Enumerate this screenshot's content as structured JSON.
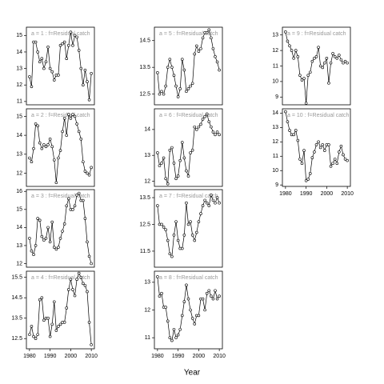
{
  "xlabel": "Year",
  "chart_data": [
    {
      "type": "line",
      "title": "a = 1 : f=Residual catch",
      "x": [
        1980,
        1981,
        1982,
        1983,
        1984,
        1985,
        1986,
        1987,
        1988,
        1989,
        1990,
        1991,
        1992,
        1993,
        1994,
        1995,
        1996,
        1997,
        1998,
        1999,
        2000,
        2001,
        2002,
        2003,
        2004,
        2005,
        2006,
        2007,
        2008,
        2009,
        2010
      ],
      "values": [
        12.5,
        11.9,
        14.6,
        14.6,
        14.0,
        13.4,
        13.6,
        13.0,
        13.4,
        14.3,
        13.0,
        12.8,
        12.3,
        12.6,
        12.6,
        14.4,
        14.5,
        14.6,
        13.6,
        14.4,
        15.2,
        14.4,
        15.0,
        14.9,
        14.1,
        13.0,
        12.0,
        12.9,
        12.2,
        11.1,
        12.7
      ],
      "xlim": [
        1978.5,
        2011.5
      ],
      "ylim": [
        10.8,
        15.5
      ],
      "yticks": [
        11,
        12,
        13,
        14,
        15
      ]
    },
    {
      "type": "line",
      "title": "a = 2 : f=Residual catch",
      "x": [
        1980,
        1981,
        1982,
        1983,
        1984,
        1985,
        1986,
        1987,
        1988,
        1989,
        1990,
        1991,
        1992,
        1993,
        1994,
        1995,
        1996,
        1997,
        1998,
        1999,
        2000,
        2001,
        2002,
        2003,
        2004,
        2005,
        2006,
        2007,
        2008,
        2009,
        2010
      ],
      "values": [
        12.8,
        12.6,
        13.3,
        14.6,
        14.5,
        13.6,
        13.3,
        13.5,
        13.4,
        13.5,
        13.8,
        13.4,
        12.7,
        11.5,
        12.8,
        13.2,
        14.2,
        14.9,
        14.0,
        15.1,
        14.9,
        15.1,
        15.0,
        14.6,
        14.2,
        13.8,
        12.6,
        12.1,
        12.0,
        11.9,
        12.3
      ],
      "xlim": [
        1978.5,
        2011.5
      ],
      "ylim": [
        11.3,
        15.4
      ],
      "yticks": [
        12,
        13,
        14,
        15
      ]
    },
    {
      "type": "line",
      "title": "a = 3 : f=Residual catch",
      "x": [
        1980,
        1981,
        1982,
        1983,
        1984,
        1985,
        1986,
        1987,
        1988,
        1989,
        1990,
        1991,
        1992,
        1993,
        1994,
        1995,
        1996,
        1997,
        1998,
        1999,
        2000,
        2001,
        2002,
        2003,
        2004,
        2005,
        2006,
        2007,
        2008,
        2009,
        2010
      ],
      "values": [
        13.4,
        12.7,
        12.5,
        13.0,
        14.5,
        14.4,
        13.5,
        13.3,
        13.4,
        14.0,
        13.2,
        14.3,
        12.9,
        12.8,
        12.9,
        13.4,
        13.8,
        14.2,
        15.2,
        15.6,
        15.0,
        15.0,
        15.2,
        15.8,
        15.9,
        15.5,
        15.5,
        14.5,
        13.2,
        12.4,
        12.0
      ],
      "xlim": [
        1978.5,
        2011.5
      ],
      "ylim": [
        11.8,
        16.1
      ],
      "yticks": [
        12,
        13,
        14,
        15,
        16
      ]
    },
    {
      "type": "line",
      "title": "a = 4 : f=Residual catch",
      "x": [
        1980,
        1981,
        1982,
        1983,
        1984,
        1985,
        1986,
        1987,
        1988,
        1989,
        1990,
        1991,
        1992,
        1993,
        1994,
        1995,
        1996,
        1997,
        1998,
        1999,
        2000,
        2001,
        2002,
        2003,
        2004,
        2005,
        2006,
        2007,
        2008,
        2009,
        2010
      ],
      "values": [
        12.7,
        13.1,
        12.6,
        12.5,
        12.7,
        14.4,
        14.5,
        13.4,
        13.5,
        13.5,
        12.6,
        13.2,
        14.3,
        12.9,
        13.1,
        13.2,
        13.3,
        13.3,
        14.0,
        14.9,
        15.4,
        14.9,
        14.6,
        15.4,
        15.7,
        15.5,
        15.2,
        15.1,
        14.8,
        13.3,
        12.2
      ],
      "xlim": [
        1978.5,
        2011.5
      ],
      "ylim": [
        12.0,
        15.8
      ],
      "yticks": [
        12.5,
        13.5,
        14.5,
        15.5
      ],
      "xticks": [
        1980,
        1990,
        2000,
        2010
      ]
    },
    {
      "type": "line",
      "title": "a = 5 : f=Residual catch",
      "x": [
        1980,
        1981,
        1982,
        1983,
        1984,
        1985,
        1986,
        1987,
        1988,
        1989,
        1990,
        1991,
        1992,
        1993,
        1994,
        1995,
        1996,
        1997,
        1998,
        1999,
        2000,
        2001,
        2002,
        2003,
        2004,
        2005,
        2006,
        2007,
        2008,
        2009,
        2010
      ],
      "values": [
        13.3,
        12.5,
        12.6,
        12.5,
        12.8,
        13.5,
        13.8,
        13.5,
        13.2,
        12.8,
        12.4,
        12.7,
        13.8,
        13.4,
        12.6,
        12.7,
        12.8,
        12.9,
        14.0,
        14.3,
        14.1,
        14.2,
        14.6,
        14.8,
        14.8,
        14.9,
        14.6,
        14.2,
        13.9,
        13.7,
        13.4
      ],
      "xlim": [
        1978.5,
        2011.5
      ],
      "ylim": [
        12.1,
        15.0
      ],
      "yticks": [
        12.5,
        13.5,
        14.5
      ]
    },
    {
      "type": "line",
      "title": "a = 6 : f=Residual catch",
      "x": [
        1980,
        1981,
        1982,
        1983,
        1984,
        1985,
        1986,
        1987,
        1988,
        1989,
        1990,
        1991,
        1992,
        1993,
        1994,
        1995,
        1996,
        1997,
        1998,
        1999,
        2000,
        2001,
        2002,
        2003,
        2004,
        2005,
        2006,
        2007,
        2008,
        2009,
        2010
      ],
      "values": [
        13.1,
        12.6,
        12.7,
        12.9,
        12.1,
        11.9,
        13.2,
        13.3,
        12.7,
        12.1,
        12.2,
        12.8,
        13.5,
        12.9,
        12.4,
        12.2,
        13.1,
        13.2,
        14.1,
        14.0,
        14.1,
        14.2,
        14.4,
        14.5,
        14.6,
        14.3,
        14.1,
        13.9,
        13.8,
        13.9,
        13.8
      ],
      "xlim": [
        1978.5,
        2011.5
      ],
      "ylim": [
        11.8,
        14.8
      ],
      "yticks": [
        12,
        13,
        14
      ]
    },
    {
      "type": "line",
      "title": "a = 7 : f=Residual catch",
      "x": [
        1980,
        1981,
        1982,
        1983,
        1984,
        1985,
        1986,
        1987,
        1988,
        1989,
        1990,
        1991,
        1992,
        1993,
        1994,
        1995,
        1996,
        1997,
        1998,
        1999,
        2000,
        2001,
        2002,
        2003,
        2004,
        2005,
        2006,
        2007,
        2008,
        2009,
        2010
      ],
      "values": [
        13.2,
        12.5,
        12.5,
        12.4,
        12.3,
        11.9,
        11.4,
        11.3,
        12.1,
        12.6,
        11.9,
        11.6,
        11.6,
        12.1,
        13.3,
        12.5,
        12.6,
        12.1,
        11.9,
        12.2,
        12.6,
        12.9,
        13.2,
        13.4,
        13.3,
        13.2,
        13.6,
        13.4,
        13.3,
        13.5,
        13.3
      ],
      "xlim": [
        1978.5,
        2011.5
      ],
      "ylim": [
        10.9,
        13.8
      ],
      "yticks": [
        11.5,
        12.5,
        13.5
      ]
    },
    {
      "type": "line",
      "title": "a = 8 : f=Residual catch",
      "x": [
        1980,
        1981,
        1982,
        1983,
        1984,
        1985,
        1986,
        1987,
        1988,
        1989,
        1990,
        1991,
        1992,
        1993,
        1994,
        1995,
        1996,
        1997,
        1998,
        1999,
        2000,
        2001,
        2002,
        2003,
        2004,
        2005,
        2006,
        2007,
        2008,
        2009,
        2010
      ],
      "values": [
        13.2,
        12.5,
        12.6,
        12.1,
        12.1,
        11.6,
        11.0,
        10.9,
        11.3,
        11.0,
        11.1,
        11.3,
        11.8,
        12.3,
        12.9,
        12.4,
        12.0,
        11.7,
        11.5,
        11.8,
        11.8,
        12.4,
        12.4,
        12.0,
        12.6,
        12.7,
        12.5,
        12.4,
        12.7,
        12.4,
        12.5
      ],
      "xlim": [
        1978.5,
        2011.5
      ],
      "ylim": [
        10.6,
        13.4
      ],
      "yticks": [
        11,
        12,
        13
      ],
      "xticks": [
        1980,
        1990,
        2000,
        2010
      ]
    },
    {
      "type": "line",
      "title": "a = 9 : f=Residual catch",
      "x": [
        1980,
        1981,
        1982,
        1983,
        1984,
        1985,
        1986,
        1987,
        1988,
        1989,
        1990,
        1991,
        1992,
        1993,
        1994,
        1995,
        1996,
        1997,
        1998,
        1999,
        2000,
        2001,
        2002,
        2003,
        2004,
        2005,
        2006,
        2007,
        2008,
        2009,
        2010
      ],
      "values": [
        13.2,
        12.6,
        12.3,
        12.0,
        11.5,
        12.0,
        11.6,
        10.4,
        10.1,
        10.2,
        8.6,
        10.4,
        10.6,
        11.3,
        11.5,
        11.6,
        12.2,
        11.0,
        10.9,
        11.2,
        11.5,
        9.9,
        11.2,
        11.8,
        11.6,
        11.5,
        11.7,
        11.4,
        11.2,
        11.3,
        11.2
      ],
      "xlim": [
        1978.5,
        2011.5
      ],
      "ylim": [
        8.5,
        13.5
      ],
      "yticks": [
        9,
        10,
        11,
        12,
        13
      ]
    },
    {
      "type": "line",
      "title": "a = 10 : f=Residual catch",
      "x": [
        1980,
        1981,
        1982,
        1983,
        1984,
        1985,
        1986,
        1987,
        1988,
        1989,
        1990,
        1991,
        1992,
        1993,
        1994,
        1995,
        1996,
        1997,
        1998,
        1999,
        2000,
        2001,
        2002,
        2003,
        2004,
        2005,
        2006,
        2007,
        2008,
        2009,
        2010
      ],
      "values": [
        14.1,
        13.4,
        12.8,
        12.5,
        12.5,
        12.8,
        12.1,
        10.8,
        10.5,
        11.4,
        9.3,
        9.4,
        9.8,
        10.9,
        11.3,
        11.8,
        12.0,
        11.6,
        11.8,
        11.4,
        11.8,
        11.8,
        10.3,
        10.5,
        10.8,
        10.5,
        11.3,
        11.7,
        11.1,
        10.8,
        10.7
      ],
      "xlim": [
        1978.5,
        2011.5
      ],
      "ylim": [
        8.9,
        14.3
      ],
      "yticks": [
        9,
        10,
        11,
        12,
        13,
        14
      ],
      "xticks": [
        1980,
        1990,
        2000,
        2010
      ]
    }
  ]
}
